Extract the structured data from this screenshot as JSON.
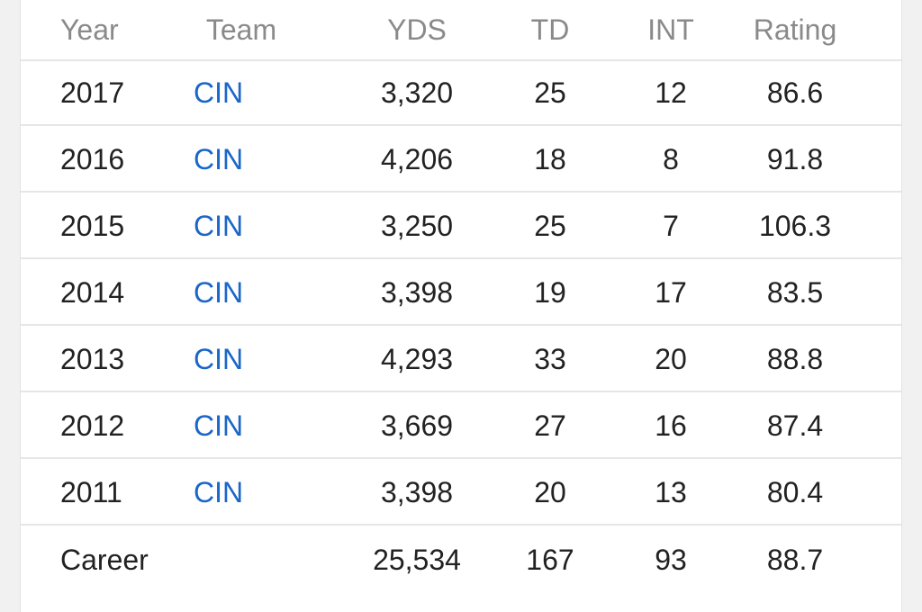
{
  "table": {
    "headers": {
      "year": "Year",
      "team": "Team",
      "yds": "YDS",
      "td": "TD",
      "int": "INT",
      "rating": "Rating"
    },
    "rows": [
      {
        "year": "2017",
        "team": "CIN",
        "yds": "3,320",
        "td": "25",
        "int": "12",
        "rating": "86.6"
      },
      {
        "year": "2016",
        "team": "CIN",
        "yds": "4,206",
        "td": "18",
        "int": "8",
        "rating": "91.8"
      },
      {
        "year": "2015",
        "team": "CIN",
        "yds": "3,250",
        "td": "25",
        "int": "7",
        "rating": "106.3"
      },
      {
        "year": "2014",
        "team": "CIN",
        "yds": "3,398",
        "td": "19",
        "int": "17",
        "rating": "83.5"
      },
      {
        "year": "2013",
        "team": "CIN",
        "yds": "4,293",
        "td": "33",
        "int": "20",
        "rating": "88.8"
      },
      {
        "year": "2012",
        "team": "CIN",
        "yds": "3,669",
        "td": "27",
        "int": "16",
        "rating": "87.4"
      },
      {
        "year": "2011",
        "team": "CIN",
        "yds": "3,398",
        "td": "20",
        "int": "13",
        "rating": "80.4"
      }
    ],
    "career": {
      "label": "Career",
      "yds": "25,534",
      "td": "167",
      "int": "93",
      "rating": "88.7"
    }
  },
  "colors": {
    "link": "#1a66c9",
    "header_text": "#8a8a8a",
    "body_text": "#222222",
    "divider": "#e6e6e6"
  }
}
